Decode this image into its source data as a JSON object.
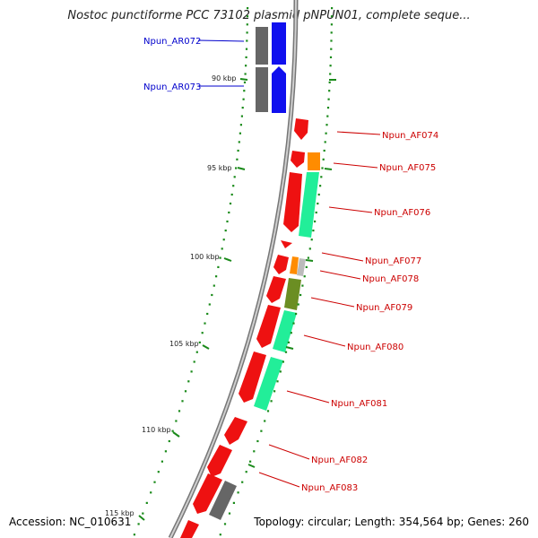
{
  "title": "Nostoc punctiforme PCC 73102 plasmid pNPUN01, complete seque...",
  "footer": {
    "accession": "Accession: NC_010631",
    "summary": "Topology: circular; Length: 354,564 bp; Genes: 260"
  },
  "colors": {
    "backbone": "#888888",
    "forward_gene": "#ff0000",
    "reverse_gene": "#0000ff",
    "label_forward": "#cc0000",
    "label_reverse": "#0000cc",
    "ticks": "#228b22"
  },
  "scale_labels": [
    {
      "text": "90 kbp"
    },
    {
      "text": "95 kbp"
    },
    {
      "text": "100 kbp"
    },
    {
      "text": "105 kbp"
    },
    {
      "text": "110 kbp"
    },
    {
      "text": "115 kbp"
    }
  ],
  "gene_labels": [
    {
      "name": "Npun_AR072",
      "strand": "reverse"
    },
    {
      "name": "Npun_AR073",
      "strand": "reverse"
    },
    {
      "name": "Npun_AF074",
      "strand": "forward"
    },
    {
      "name": "Npun_AF075",
      "strand": "forward"
    },
    {
      "name": "Npun_AF076",
      "strand": "forward"
    },
    {
      "name": "Npun_AF077",
      "strand": "forward"
    },
    {
      "name": "Npun_AF078",
      "strand": "forward"
    },
    {
      "name": "Npun_AF079",
      "strand": "forward"
    },
    {
      "name": "Npun_AF080",
      "strand": "forward"
    },
    {
      "name": "Npun_AF081",
      "strand": "forward"
    },
    {
      "name": "Npun_AF082",
      "strand": "forward"
    },
    {
      "name": "Npun_AF083",
      "strand": "forward"
    }
  ]
}
